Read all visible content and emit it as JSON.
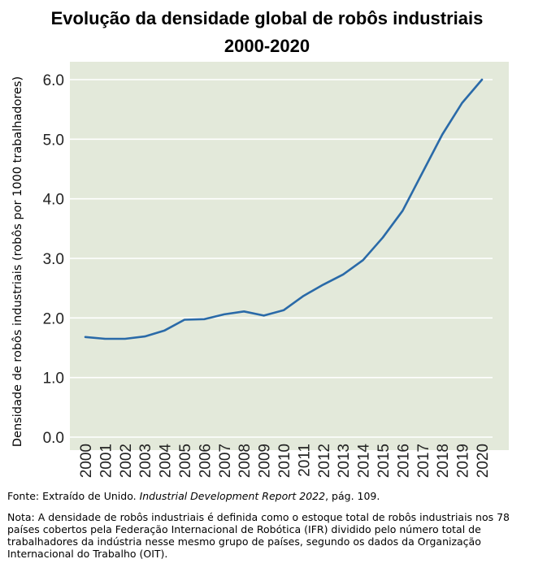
{
  "title_line1": "Evolução da densidade global de robôs industriais",
  "title_line2": "2000-2020",
  "source_prefix": "Fonte: Extraído de Unido. ",
  "source_italic": "Industrial Development Report 2022",
  "source_suffix": ", pág. 109.",
  "note": "Nota: A densidade de robôs industriais é definida como o estoque total de robôs industriais nos 78 países cobertos pela Federação Internacional de Robótica (IFR) dividido pelo número total de trabalhadores da indústria nesse mesmo grupo de países, segundo os dados da Organização Internacional do Trabalho (OIT).",
  "colors": {
    "plot_background": "#e3e9da",
    "line": "#2a6aa8",
    "grid": "#ffffff"
  },
  "chart_data": {
    "type": "line",
    "title": "Evolução da densidade global de robôs industriais 2000-2020",
    "xlabel": "",
    "ylabel": "Densidade de robôs industriais (robôs por 1000 trabalhadores)",
    "ylim": [
      0,
      6
    ],
    "yticks": [
      "0.0",
      "1.0",
      "2.0",
      "3.0",
      "4.0",
      "5.0",
      "6.0"
    ],
    "grid": true,
    "categories": [
      "2000",
      "2001",
      "2002",
      "2003",
      "2004",
      "2005",
      "2006",
      "2007",
      "2008",
      "2009",
      "2010",
      "2011",
      "2012",
      "2013",
      "2014",
      "2015",
      "2016",
      "2017",
      "2018",
      "2019",
      "2020"
    ],
    "series": [
      {
        "values": [
          1.68,
          1.65,
          1.65,
          1.69,
          1.79,
          1.97,
          1.98,
          2.06,
          2.11,
          2.04,
          2.13,
          2.37,
          2.56,
          2.73,
          2.97,
          3.35,
          3.8,
          4.44,
          5.08,
          5.61,
          6.0
        ]
      }
    ]
  }
}
